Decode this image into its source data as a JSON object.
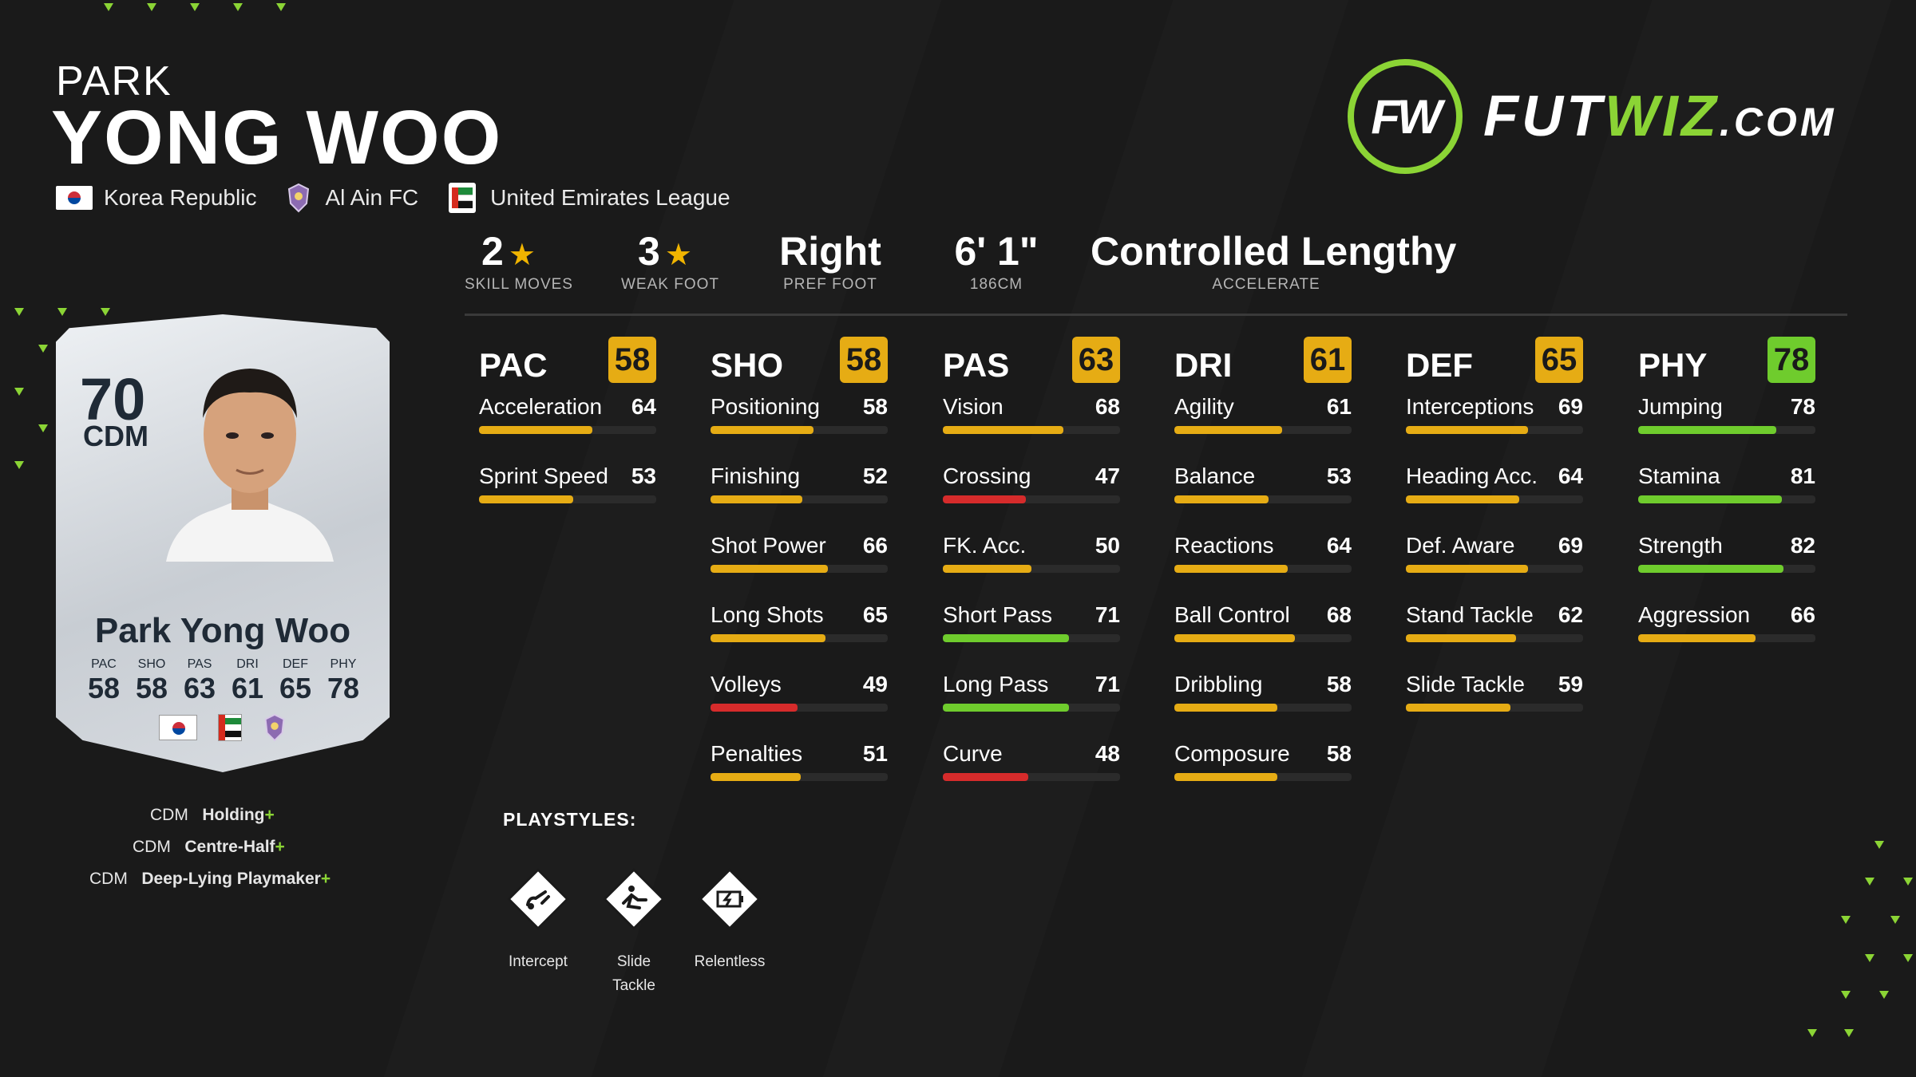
{
  "player": {
    "first_name": "PARK",
    "last_name": "YONG WOO",
    "nation": "Korea Republic",
    "club": "Al Ain FC",
    "league": "United Emirates League"
  },
  "logo": {
    "part1": "FUT",
    "part2": "WIZ",
    "part3": ".COM",
    "monogram": "FW",
    "accent_color": "#8bd435"
  },
  "info": [
    {
      "value": "2",
      "has_star": true,
      "label": "SKILL MOVES"
    },
    {
      "value": "3",
      "has_star": true,
      "label": "WEAK FOOT"
    },
    {
      "value": "Right",
      "has_star": false,
      "label": "PREF FOOT"
    },
    {
      "value": "6' 1\"",
      "has_star": false,
      "label": "186CM"
    },
    {
      "value": "Controlled Lengthy",
      "has_star": false,
      "label": "ACCELERATE"
    }
  ],
  "columns": [
    {
      "name": "PAC",
      "value": "58",
      "stats": [
        {
          "label": "Acceleration",
          "value": 64
        },
        {
          "label": "Sprint Speed",
          "value": 53
        }
      ]
    },
    {
      "name": "SHO",
      "value": "58",
      "stats": [
        {
          "label": "Positioning",
          "value": 58
        },
        {
          "label": "Finishing",
          "value": 52
        },
        {
          "label": "Shot Power",
          "value": 66
        },
        {
          "label": "Long Shots",
          "value": 65
        },
        {
          "label": "Volleys",
          "value": 49
        },
        {
          "label": "Penalties",
          "value": 51
        }
      ]
    },
    {
      "name": "PAS",
      "value": "63",
      "stats": [
        {
          "label": "Vision",
          "value": 68
        },
        {
          "label": "Crossing",
          "value": 47
        },
        {
          "label": "FK. Acc.",
          "value": 50
        },
        {
          "label": "Short Pass",
          "value": 71
        },
        {
          "label": "Long Pass",
          "value": 71
        },
        {
          "label": "Curve",
          "value": 48
        }
      ]
    },
    {
      "name": "DRI",
      "value": "61",
      "stats": [
        {
          "label": "Agility",
          "value": 61
        },
        {
          "label": "Balance",
          "value": 53
        },
        {
          "label": "Reactions",
          "value": 64
        },
        {
          "label": "Ball Control",
          "value": 68
        },
        {
          "label": "Dribbling",
          "value": 58
        },
        {
          "label": "Composure",
          "value": 58
        }
      ]
    },
    {
      "name": "DEF",
      "value": "65",
      "stats": [
        {
          "label": "Interceptions",
          "value": 69
        },
        {
          "label": "Heading Acc.",
          "value": 64
        },
        {
          "label": "Def. Aware",
          "value": 69
        },
        {
          "label": "Stand Tackle",
          "value": 62
        },
        {
          "label": "Slide Tackle",
          "value": 59
        }
      ]
    },
    {
      "name": "PHY",
      "value": "78",
      "stats": [
        {
          "label": "Jumping",
          "value": 78
        },
        {
          "label": "Stamina",
          "value": 81
        },
        {
          "label": "Strength",
          "value": 82
        },
        {
          "label": "Aggression",
          "value": 66
        }
      ]
    }
  ],
  "colors": {
    "low": "#d62b2b",
    "mid": "#e6ac14",
    "high": "#6fcc2d"
  },
  "card": {
    "rating": "70",
    "position": "CDM",
    "name": "Park Yong Woo",
    "stats": [
      {
        "label": "PAC",
        "value": "58"
      },
      {
        "label": "SHO",
        "value": "58"
      },
      {
        "label": "PAS",
        "value": "63"
      },
      {
        "label": "DRI",
        "value": "61"
      },
      {
        "label": "DEF",
        "value": "65"
      },
      {
        "label": "PHY",
        "value": "78"
      }
    ]
  },
  "roles": [
    {
      "pos": "CDM",
      "name": "Holding",
      "plus": "+"
    },
    {
      "pos": "CDM",
      "name": "Centre-Half",
      "plus": "+"
    },
    {
      "pos": "CDM",
      "name": "Deep-Lying Playmaker",
      "plus": "+"
    }
  ],
  "playstyles": {
    "title": "PLAYSTYLES:",
    "items": [
      {
        "label": "Intercept",
        "icon": "intercept-icon"
      },
      {
        "label": "Slide Tackle",
        "icon": "slide-tackle-icon"
      },
      {
        "label": "Relentless",
        "icon": "relentless-icon"
      }
    ]
  }
}
